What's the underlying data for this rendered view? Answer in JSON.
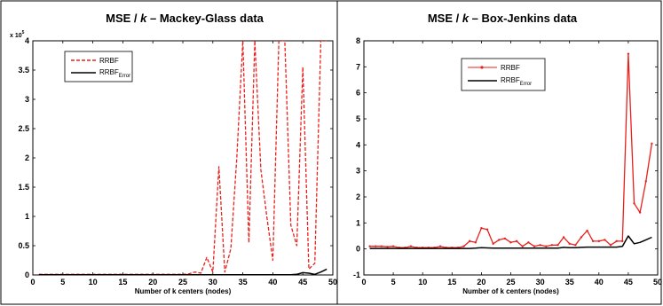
{
  "colors": {
    "rrbf": "#e8211c",
    "rrbf_error": "#000000",
    "axis": "#000000",
    "background": "#ffffff"
  },
  "panels": [
    {
      "title_prefix": "MSE / ",
      "title_k": "k",
      "title_suffix": " – Mackey-Glass data",
      "multiplier": "x 10",
      "multiplier_exp": "5",
      "legend": {
        "series1": "RRBF",
        "series2_main": "RRBF",
        "series2_sub": "Error"
      }
    },
    {
      "title_prefix": "MSE / ",
      "title_k": "k",
      "title_suffix": " – Box-Jenkins data",
      "legend": {
        "series1": "RRBF",
        "series2_main": "RRBF",
        "series2_sub": "Error"
      }
    }
  ],
  "chart_data": [
    {
      "type": "line",
      "title": "MSE / k – Mackey-Glass data",
      "xlabel": "Number of k centers (nodes)",
      "ylabel": "",
      "y_multiplier": "x 10^5",
      "xlim": [
        0,
        50
      ],
      "ylim": [
        0,
        4
      ],
      "xticks": [
        0,
        5,
        10,
        15,
        20,
        25,
        30,
        35,
        40,
        45,
        50
      ],
      "yticks": [
        0,
        0.5,
        1,
        1.5,
        2,
        2.5,
        3,
        3.5,
        4
      ],
      "ytick_labels": [
        "0",
        "0.5",
        "1",
        "1.5",
        "2",
        "2.5",
        "3",
        "3.5",
        "4"
      ],
      "legend_position": "top-left",
      "series": [
        {
          "name": "RRBF",
          "style": "dashed",
          "x": [
            1,
            2,
            3,
            4,
            5,
            6,
            7,
            8,
            9,
            10,
            11,
            12,
            13,
            14,
            15,
            16,
            17,
            18,
            19,
            20,
            21,
            22,
            23,
            24,
            25,
            26,
            27,
            28,
            29,
            30,
            31,
            32,
            33,
            34,
            35,
            36,
            37,
            38,
            39,
            40,
            41,
            42,
            43,
            44,
            45,
            46,
            47,
            48,
            49
          ],
          "values": [
            0.01,
            0.01,
            0.01,
            0.01,
            0.01,
            0.01,
            0.01,
            0.01,
            0.01,
            0.01,
            0.01,
            0.01,
            0.01,
            0.01,
            0.01,
            0.01,
            0.01,
            0.01,
            0.01,
            0.01,
            0.01,
            0.01,
            0.01,
            0.01,
            0.01,
            0.02,
            0.05,
            0.03,
            0.3,
            0.05,
            1.85,
            0.05,
            0.45,
            2.0,
            4.0,
            0.55,
            4.0,
            1.8,
            1.0,
            0.25,
            4.0,
            4.0,
            0.85,
            0.5,
            3.55,
            0.1,
            0.2,
            4.0,
            4.0
          ]
        },
        {
          "name": "RRBF_Error",
          "style": "solid",
          "x": [
            1,
            2,
            3,
            4,
            5,
            6,
            7,
            8,
            9,
            10,
            11,
            12,
            13,
            14,
            15,
            16,
            17,
            18,
            19,
            20,
            21,
            22,
            23,
            24,
            25,
            26,
            27,
            28,
            29,
            30,
            31,
            32,
            33,
            34,
            35,
            36,
            37,
            38,
            39,
            40,
            41,
            42,
            43,
            44,
            45,
            46,
            47,
            48,
            49
          ],
          "values": [
            0.005,
            0.005,
            0.005,
            0.005,
            0.005,
            0.005,
            0.005,
            0.005,
            0.005,
            0.005,
            0.005,
            0.005,
            0.005,
            0.005,
            0.005,
            0.005,
            0.005,
            0.005,
            0.005,
            0.005,
            0.005,
            0.005,
            0.005,
            0.005,
            0.005,
            0.005,
            0.005,
            0.005,
            0.005,
            0.005,
            0.005,
            0.005,
            0.005,
            0.005,
            0.005,
            0.005,
            0.005,
            0.005,
            0.005,
            0.005,
            0.005,
            0.005,
            0.005,
            0.01,
            0.04,
            0.03,
            0.01,
            0.05,
            0.1
          ]
        }
      ]
    },
    {
      "type": "line",
      "title": "MSE / k – Box-Jenkins data",
      "xlabel": "Number of k centers (nodes)",
      "ylabel": "",
      "xlim": [
        0,
        50
      ],
      "ylim": [
        -1,
        8
      ],
      "xticks": [
        0,
        5,
        10,
        15,
        20,
        25,
        30,
        35,
        40,
        45,
        50
      ],
      "yticks": [
        -1,
        0,
        1,
        2,
        3,
        4,
        5,
        6,
        7,
        8
      ],
      "legend_position": "top-right",
      "series": [
        {
          "name": "RRBF",
          "style": "solid-with-markers",
          "x": [
            1,
            2,
            3,
            4,
            5,
            6,
            7,
            8,
            9,
            10,
            11,
            12,
            13,
            14,
            15,
            16,
            17,
            18,
            19,
            20,
            21,
            22,
            23,
            24,
            25,
            26,
            27,
            28,
            29,
            30,
            31,
            32,
            33,
            34,
            35,
            36,
            37,
            38,
            39,
            40,
            41,
            42,
            43,
            44,
            45,
            46,
            47,
            48,
            49
          ],
          "values": [
            0.1,
            0.1,
            0.1,
            0.08,
            0.1,
            0.05,
            0.05,
            0.1,
            0.05,
            0.05,
            0.05,
            0.05,
            0.1,
            0.05,
            0.05,
            0.05,
            0.1,
            0.3,
            0.25,
            0.8,
            0.75,
            0.2,
            0.35,
            0.4,
            0.25,
            0.3,
            0.1,
            0.25,
            0.1,
            0.15,
            0.1,
            0.15,
            0.15,
            0.45,
            0.2,
            0.15,
            0.45,
            0.7,
            0.3,
            0.3,
            0.35,
            0.15,
            0.3,
            0.3,
            7.5,
            1.75,
            1.4,
            2.6,
            4.05
          ]
        },
        {
          "name": "RRBF_Error",
          "style": "solid",
          "x": [
            1,
            2,
            3,
            4,
            5,
            6,
            7,
            8,
            9,
            10,
            11,
            12,
            13,
            14,
            15,
            16,
            17,
            18,
            19,
            20,
            21,
            22,
            23,
            24,
            25,
            26,
            27,
            28,
            29,
            30,
            31,
            32,
            33,
            34,
            35,
            36,
            37,
            38,
            39,
            40,
            41,
            42,
            43,
            44,
            45,
            46,
            47,
            48,
            49
          ],
          "values": [
            0.02,
            0.02,
            0.02,
            0.02,
            0.02,
            0.02,
            0.02,
            0.02,
            0.02,
            0.02,
            0.02,
            0.02,
            0.02,
            0.02,
            0.02,
            0.02,
            0.02,
            0.02,
            0.03,
            0.05,
            0.04,
            0.03,
            0.03,
            0.03,
            0.03,
            0.03,
            0.03,
            0.03,
            0.03,
            0.03,
            0.03,
            0.03,
            0.03,
            0.06,
            0.05,
            0.05,
            0.06,
            0.07,
            0.07,
            0.07,
            0.07,
            0.07,
            0.07,
            0.1,
            0.5,
            0.2,
            0.25,
            0.35,
            0.45
          ]
        }
      ]
    }
  ]
}
